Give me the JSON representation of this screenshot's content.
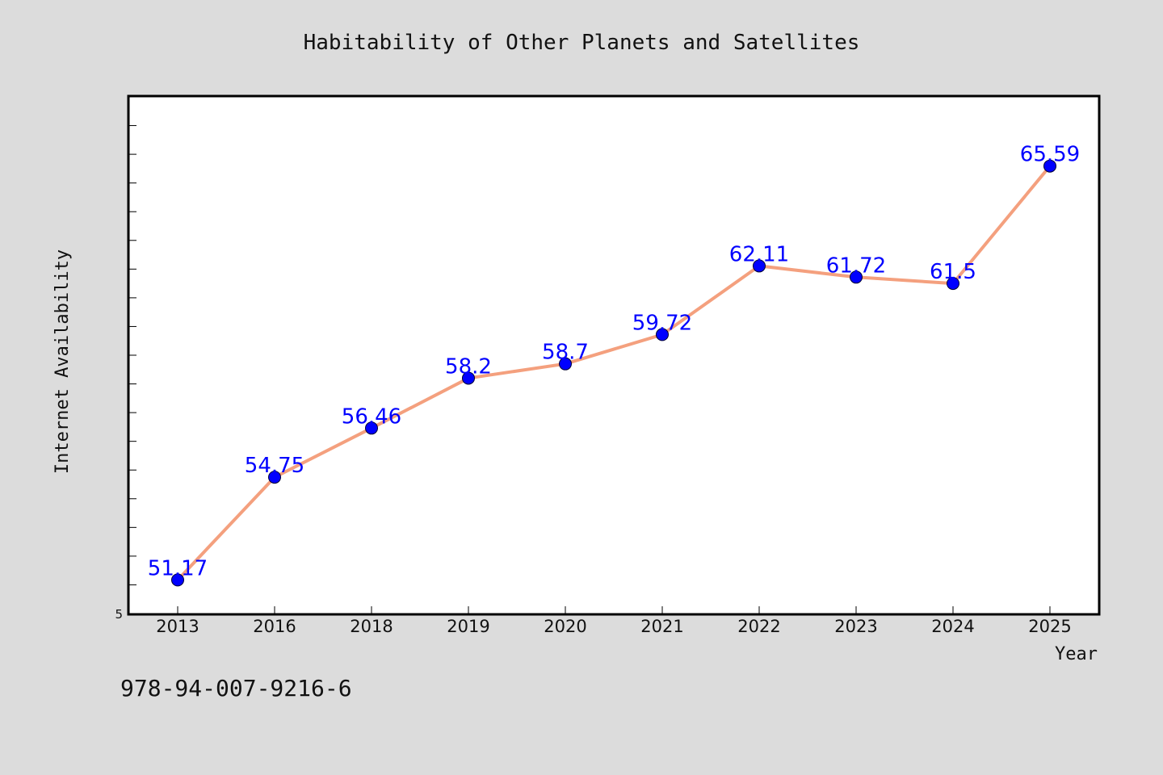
{
  "chart_data": {
    "type": "line",
    "title": "Habitability of Other Planets and Satellites",
    "xlabel": "Year",
    "ylabel": "Internet Availability",
    "categories": [
      "2013",
      "2016",
      "2018",
      "2019",
      "2020",
      "2021",
      "2022",
      "2023",
      "2024",
      "2025"
    ],
    "series": [
      {
        "values": [
          51.17,
          54.75,
          56.46,
          58.2,
          58.7,
          59.72,
          62.11,
          61.72,
          61.5,
          65.59
        ],
        "labels": [
          "51.17",
          "54.75",
          "56.46",
          "58.2",
          "58.7",
          "59.72",
          "62.11",
          "61.72",
          "61.5",
          "65.59"
        ]
      }
    ],
    "ylim": [
      50,
      68
    ],
    "y_tick_label": "5",
    "grid": false,
    "line_color": "#f4a07e",
    "marker_color": "#0000ff",
    "label_color": "#0000ff",
    "background": "#dcdcdc",
    "plot_background": "#ffffff"
  },
  "footer": {
    "isbn": "978-94-007-9216-6"
  }
}
